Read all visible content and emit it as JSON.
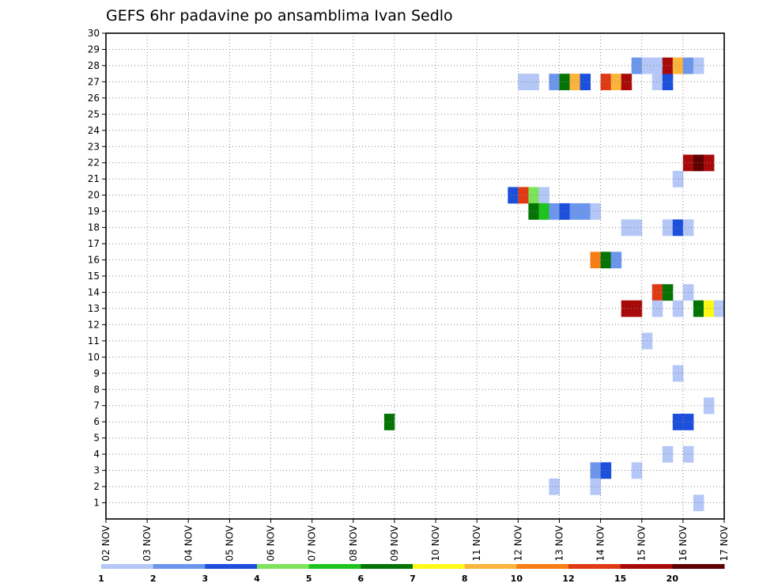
{
  "chart_data": {
    "type": "heatmap",
    "title": "GEFS 6hr padavine po ansamblima Ivan Sedlo",
    "xlabel": "",
    "ylabel": "",
    "x_tick_labels": [
      "02 NOV",
      "03 NOV",
      "04 NOV",
      "05 NOV",
      "06 NOV",
      "07 NOV",
      "08 NOV",
      "09 NOV",
      "10 NOV",
      "11 NOV",
      "12 NOV",
      "13 NOV",
      "14 NOV",
      "15 NOV",
      "16 NOV",
      "17 NOV"
    ],
    "y_tick_labels": [
      "1",
      "2",
      "3",
      "4",
      "5",
      "6",
      "7",
      "8",
      "9",
      "10",
      "11",
      "12",
      "13",
      "14",
      "15",
      "16",
      "17",
      "18",
      "19",
      "20",
      "21",
      "22",
      "23",
      "24",
      "25",
      "26",
      "27",
      "28",
      "29",
      "30"
    ],
    "xlim_days": [
      2,
      17
    ],
    "ylim": [
      0,
      30
    ],
    "grid": true,
    "legend_position": "bottom",
    "legend_ticks": [
      "1",
      "2",
      "3",
      "4",
      "5",
      "6",
      "7",
      "8",
      "10",
      "12",
      "15",
      "20"
    ],
    "colors": [
      "#b4c7f6",
      "#6c95ec",
      "#1b4fdc",
      "#7be45a",
      "#1ec41e",
      "#047405",
      "#fef818",
      "#fbb43c",
      "#f77d14",
      "#df3a14",
      "#a80a09",
      "#5e0000"
    ],
    "cells_description": "Each cell = [day of November at start of 6-hour step, ensemble member, color class index 0-11]",
    "cells": [
      [
        8.75,
        6,
        5
      ],
      [
        12.0,
        27,
        0
      ],
      [
        12.25,
        27,
        0
      ],
      [
        12.75,
        27,
        1
      ],
      [
        13.0,
        27,
        5
      ],
      [
        13.25,
        27,
        7
      ],
      [
        13.5,
        27,
        2
      ],
      [
        14.0,
        27,
        9
      ],
      [
        14.25,
        27,
        7
      ],
      [
        14.5,
        27,
        10
      ],
      [
        15.25,
        27,
        0
      ],
      [
        15.5,
        27,
        2
      ],
      [
        14.75,
        28,
        1
      ],
      [
        15.0,
        28,
        0
      ],
      [
        15.25,
        28,
        0
      ],
      [
        15.5,
        28,
        10
      ],
      [
        15.75,
        28,
        7
      ],
      [
        16.0,
        28,
        1
      ],
      [
        16.25,
        28,
        0
      ],
      [
        16.25,
        1,
        0
      ],
      [
        15.75,
        21,
        0
      ],
      [
        16.0,
        22,
        10
      ],
      [
        16.25,
        22,
        11
      ],
      [
        16.5,
        22,
        10
      ],
      [
        11.75,
        20,
        2
      ],
      [
        12.0,
        20,
        9
      ],
      [
        12.25,
        20,
        3
      ],
      [
        12.5,
        20,
        0
      ],
      [
        12.25,
        19,
        5
      ],
      [
        12.5,
        19,
        4
      ],
      [
        12.75,
        19,
        1
      ],
      [
        13.0,
        19,
        2
      ],
      [
        13.25,
        19,
        1
      ],
      [
        13.5,
        19,
        1
      ],
      [
        13.75,
        19,
        0
      ],
      [
        14.5,
        18,
        0
      ],
      [
        14.75,
        18,
        0
      ],
      [
        15.5,
        18,
        0
      ],
      [
        15.75,
        18,
        2
      ],
      [
        16.0,
        18,
        0
      ],
      [
        13.75,
        16,
        8
      ],
      [
        14.0,
        16,
        5
      ],
      [
        14.25,
        16,
        1
      ],
      [
        15.25,
        14,
        9
      ],
      [
        15.5,
        14,
        5
      ],
      [
        16.0,
        14,
        0
      ],
      [
        14.5,
        13,
        10
      ],
      [
        14.75,
        13,
        10
      ],
      [
        15.25,
        13,
        0
      ],
      [
        15.75,
        13,
        0
      ],
      [
        16.25,
        13,
        5
      ],
      [
        16.5,
        13,
        6
      ],
      [
        16.75,
        13,
        0
      ],
      [
        15.0,
        11,
        0
      ],
      [
        15.75,
        9,
        0
      ],
      [
        16.5,
        7,
        0
      ],
      [
        15.75,
        6,
        2
      ],
      [
        16.0,
        6,
        2
      ],
      [
        15.5,
        4,
        0
      ],
      [
        16.0,
        4,
        0
      ],
      [
        13.75,
        3,
        1
      ],
      [
        14.0,
        3,
        2
      ],
      [
        14.75,
        3,
        0
      ],
      [
        12.75,
        2,
        0
      ],
      [
        13.75,
        2,
        0
      ]
    ]
  }
}
